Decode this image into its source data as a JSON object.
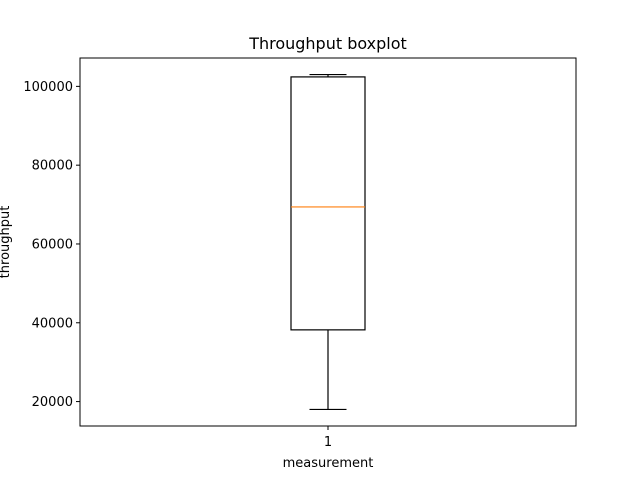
{
  "chart_data": {
    "type": "boxplot",
    "title": "Throughput boxplot",
    "xlabel": "measurement",
    "ylabel": "throughput",
    "categories": [
      "1"
    ],
    "boxes": [
      {
        "category": "1",
        "whisker_low": 18000,
        "q1": 38200,
        "median": 69400,
        "q3": 102400,
        "whisker_high": 103000
      }
    ],
    "yticks": [
      20000,
      40000,
      60000,
      80000,
      100000
    ],
    "ylim": [
      13800,
      107200
    ],
    "grid": false,
    "colors": {
      "box": "#000000",
      "median": "#ff7f0e"
    }
  }
}
